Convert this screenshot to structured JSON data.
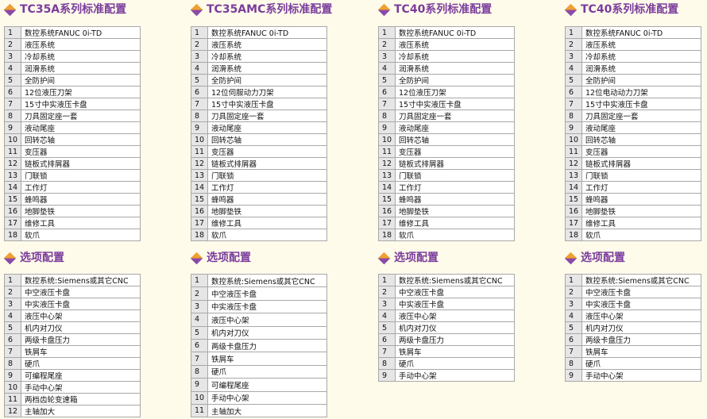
{
  "columns": [
    {
      "standard": {
        "title": "TC35A系列标准配置",
        "rows": [
          [
            1,
            "数控系统FANUC 0i-TD"
          ],
          [
            2,
            "液压系统"
          ],
          [
            3,
            "冷却系统"
          ],
          [
            4,
            "润滑系统"
          ],
          [
            5,
            "全防护间"
          ],
          [
            6,
            "12位液压刀架"
          ],
          [
            7,
            "15寸中实液压卡盘"
          ],
          [
            8,
            "刀具固定座一套"
          ],
          [
            9,
            "液动尾座"
          ],
          [
            10,
            "回转芯轴"
          ],
          [
            11,
            "变压器"
          ],
          [
            12,
            "链板式排屑器"
          ],
          [
            13,
            "门联锁"
          ],
          [
            14,
            "工作灯"
          ],
          [
            15,
            "蜂鸣器"
          ],
          [
            16,
            "地脚垫铁"
          ],
          [
            17,
            "维修工具"
          ],
          [
            18,
            "软爪"
          ]
        ]
      },
      "options": {
        "title": "选项配置",
        "rows": [
          [
            1,
            "数控系统:Siemens或其它CNC"
          ],
          [
            2,
            "中空液压卡盘"
          ],
          [
            3,
            "中实液压卡盘"
          ],
          [
            4,
            "液压中心架"
          ],
          [
            5,
            "机内对刀仪"
          ],
          [
            6,
            "两级卡盘压力"
          ],
          [
            7,
            "铁屑车"
          ],
          [
            8,
            "硬爪"
          ],
          [
            9,
            "可编程尾座"
          ],
          [
            10,
            "手动中心架"
          ],
          [
            11,
            "两档齿轮变速箱"
          ],
          [
            12,
            "主轴加大"
          ]
        ]
      }
    },
    {
      "standard": {
        "title": "TC35AMC系列标准配置",
        "rows": [
          [
            1,
            "数控系统FANUC 0i-TD"
          ],
          [
            2,
            "液压系统"
          ],
          [
            3,
            "冷却系统"
          ],
          [
            4,
            "润滑系统"
          ],
          [
            5,
            "全防护间"
          ],
          [
            6,
            "12位伺服动力刀架"
          ],
          [
            7,
            "15寸中实液压卡盘"
          ],
          [
            8,
            "刀具固定座一套"
          ],
          [
            9,
            "液动尾座"
          ],
          [
            10,
            "回转芯轴"
          ],
          [
            11,
            "变压器"
          ],
          [
            12,
            "链板式排屑器"
          ],
          [
            13,
            "门联锁"
          ],
          [
            14,
            "工作灯"
          ],
          [
            15,
            "蜂鸣器"
          ],
          [
            16,
            "地脚垫铁"
          ],
          [
            17,
            "维修工具"
          ],
          [
            18,
            "软爪"
          ]
        ]
      },
      "options": {
        "title": "选项配置",
        "rows": [
          [
            1,
            "数控系统:Siemens或其它CNC"
          ],
          [
            2,
            "中空液压卡盘"
          ],
          [
            3,
            "中实液压卡盘"
          ],
          [
            4,
            "液压中心架"
          ],
          [
            5,
            "机内对刀仪"
          ],
          [
            6,
            "两级卡盘压力"
          ],
          [
            7,
            "铁屑车"
          ],
          [
            8,
            "硬爪"
          ],
          [
            9,
            "可编程尾座"
          ],
          [
            10,
            "手动中心架"
          ],
          [
            11,
            "主轴加大"
          ]
        ]
      }
    },
    {
      "standard": {
        "title": "TC40系列标准配置",
        "rows": [
          [
            1,
            "数控系统FANUC 0i-TD"
          ],
          [
            2,
            "液压系统"
          ],
          [
            3,
            "冷却系统"
          ],
          [
            4,
            "润滑系统"
          ],
          [
            5,
            "全防护间"
          ],
          [
            6,
            "12位液压刀架"
          ],
          [
            7,
            "15寸中实液压卡盘"
          ],
          [
            8,
            "刀具固定座一套"
          ],
          [
            9,
            "液动尾座"
          ],
          [
            10,
            "回转芯轴"
          ],
          [
            11,
            "变压器"
          ],
          [
            12,
            "链板式排屑器"
          ],
          [
            13,
            "门联锁"
          ],
          [
            14,
            "工作灯"
          ],
          [
            15,
            "蜂鸣器"
          ],
          [
            16,
            "地脚垫铁"
          ],
          [
            17,
            "维修工具"
          ],
          [
            18,
            "软爪"
          ]
        ]
      },
      "options": {
        "title": "选项配置",
        "rows": [
          [
            1,
            "数控系统:Siemens或其它CNC"
          ],
          [
            2,
            "中空液压卡盘"
          ],
          [
            3,
            "中实液压卡盘"
          ],
          [
            4,
            "液压中心架"
          ],
          [
            5,
            "机内对刀仪"
          ],
          [
            6,
            "两级卡盘压力"
          ],
          [
            7,
            "铁屑车"
          ],
          [
            8,
            "硬爪"
          ],
          [
            9,
            "手动中心架"
          ]
        ]
      }
    },
    {
      "standard": {
        "title": "TC40系列标准配置",
        "rows": [
          [
            1,
            "数控系统FANUC 0i-TD"
          ],
          [
            2,
            "液压系统"
          ],
          [
            3,
            "冷却系统"
          ],
          [
            4,
            "润滑系统"
          ],
          [
            5,
            "全防护间"
          ],
          [
            6,
            "12位电动动力刀架"
          ],
          [
            7,
            "15寸中实液压卡盘"
          ],
          [
            8,
            "刀具固定座一套"
          ],
          [
            9,
            "液动尾座"
          ],
          [
            10,
            "回转芯轴"
          ],
          [
            11,
            "变压器"
          ],
          [
            12,
            "链板式排屑器"
          ],
          [
            13,
            "门联锁"
          ],
          [
            14,
            "工作灯"
          ],
          [
            15,
            "蜂鸣器"
          ],
          [
            16,
            "地脚垫铁"
          ],
          [
            17,
            "维修工具"
          ],
          [
            18,
            "软爪"
          ]
        ]
      },
      "options": {
        "title": "选项配置",
        "rows": [
          [
            1,
            "数控系统:Siemens或其它CNC"
          ],
          [
            2,
            "中空液压卡盘"
          ],
          [
            3,
            "中实液压卡盘"
          ],
          [
            4,
            "液压中心架"
          ],
          [
            5,
            "机内对刀仪"
          ],
          [
            6,
            "两级卡盘压力"
          ],
          [
            7,
            "铁屑车"
          ],
          [
            8,
            "硬爪"
          ],
          [
            9,
            "手动中心架"
          ]
        ]
      }
    }
  ]
}
